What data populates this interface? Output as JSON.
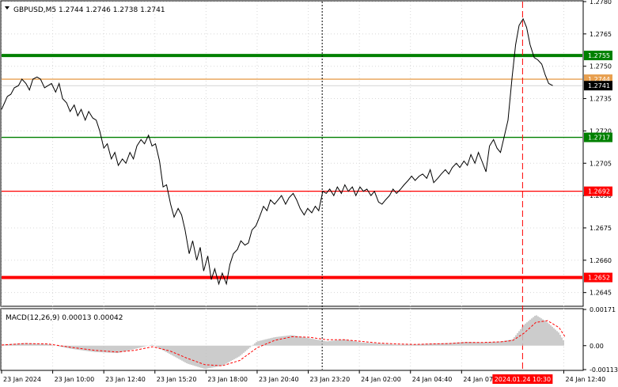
{
  "chart_data": [
    {
      "type": "line",
      "symbol": "GBPUSD,M5",
      "ohlc": [
        "1.2744",
        "1.2746",
        "1.2738",
        "1.2741"
      ],
      "title": "GBPUSD,M5  1.2744 1.2746 1.2738 1.2741",
      "ylim": [
        1.2639,
        1.278
      ],
      "yticks": [
        "1.2780",
        "1.2765",
        "1.2750",
        "1.2735",
        "1.2720",
        "1.2705",
        "1.2690",
        "1.2675",
        "1.2660",
        "1.2645"
      ],
      "xlim": [
        0,
        100
      ],
      "xticks": [
        {
          "x": 0,
          "label": "23 Jan 2024"
        },
        {
          "x": 8.8,
          "label": "23 Jan 10:00"
        },
        {
          "x": 17.6,
          "label": "23 Jan 12:40"
        },
        {
          "x": 26.4,
          "label": "23 Jan 15:20"
        },
        {
          "x": 35.2,
          "label": "23 Jan 18:00"
        },
        {
          "x": 44,
          "label": "23 Jan 20:40"
        },
        {
          "x": 52.8,
          "label": "23 Jan 23:20"
        },
        {
          "x": 61.6,
          "label": "24 Jan 02:00"
        },
        {
          "x": 70.4,
          "label": "24 Jan 04:40"
        },
        {
          "x": 79.2,
          "label": "24 Jan 07:20"
        },
        {
          "x": 96.8,
          "label": "24 Jan 12:40"
        }
      ],
      "highlighted_time": {
        "x": 89.7,
        "label": "2024.01.24 10:30"
      },
      "session_line_x": 55.2,
      "levels": [
        {
          "value": 1.2755,
          "label": "1.2755",
          "color": "#008000",
          "thick": true
        },
        {
          "value": 1.2744,
          "label": "1.2744",
          "color": "#e8a050",
          "thick": false
        },
        {
          "value": 1.2741,
          "label": "1.2741",
          "color": "#000000",
          "thick": false
        },
        {
          "value": 1.2717,
          "label": "1.2717",
          "color": "#008000",
          "thick": false
        },
        {
          "value": 1.2692,
          "label": "1.2692",
          "color": "#ff0000",
          "thick": false
        },
        {
          "value": 1.2652,
          "label": "1.2652",
          "color": "#ff0000",
          "thick": true
        }
      ],
      "price_series": [
        [
          0,
          1.273
        ],
        [
          0.5,
          1.2733
        ],
        [
          1,
          1.2736
        ],
        [
          1.6,
          1.2737
        ],
        [
          2.2,
          1.274
        ],
        [
          2.9,
          1.2741
        ],
        [
          3.5,
          1.2744
        ],
        [
          4.2,
          1.2742
        ],
        [
          4.8,
          1.2739
        ],
        [
          5.4,
          1.2744
        ],
        [
          6.1,
          1.2745
        ],
        [
          6.7,
          1.2744
        ],
        [
          7.4,
          1.274
        ],
        [
          8,
          1.2741
        ],
        [
          8.6,
          1.2742
        ],
        [
          9.3,
          1.2738
        ],
        [
          9.9,
          1.2742
        ],
        [
          10.5,
          1.2735
        ],
        [
          11.2,
          1.2733
        ],
        [
          11.8,
          1.2729
        ],
        [
          12.5,
          1.2732
        ],
        [
          13.1,
          1.2727
        ],
        [
          13.7,
          1.273
        ],
        [
          14.4,
          1.2725
        ],
        [
          15,
          1.2729
        ],
        [
          15.7,
          1.2726
        ],
        [
          16.3,
          1.2725
        ],
        [
          16.9,
          1.272
        ],
        [
          17.6,
          1.2712
        ],
        [
          18.2,
          1.2714
        ],
        [
          18.9,
          1.2707
        ],
        [
          19.5,
          1.271
        ],
        [
          20.1,
          1.2704
        ],
        [
          20.8,
          1.2707
        ],
        [
          21.4,
          1.2705
        ],
        [
          22.1,
          1.271
        ],
        [
          22.7,
          1.2707
        ],
        [
          23.3,
          1.2713
        ],
        [
          24,
          1.2716
        ],
        [
          24.6,
          1.2714
        ],
        [
          25.3,
          1.2718
        ],
        [
          25.9,
          1.2713
        ],
        [
          26.5,
          1.2714
        ],
        [
          27.2,
          1.2706
        ],
        [
          27.8,
          1.2694
        ],
        [
          28.4,
          1.2695
        ],
        [
          29.1,
          1.2686
        ],
        [
          29.7,
          1.268
        ],
        [
          30.4,
          1.2684
        ],
        [
          31,
          1.2681
        ],
        [
          31.6,
          1.2674
        ],
        [
          32.3,
          1.2663
        ],
        [
          32.9,
          1.2669
        ],
        [
          33.6,
          1.266
        ],
        [
          34.2,
          1.2666
        ],
        [
          34.8,
          1.2655
        ],
        [
          35.5,
          1.2662
        ],
        [
          36.1,
          1.2651
        ],
        [
          36.7,
          1.2656
        ],
        [
          37.4,
          1.2649
        ],
        [
          38,
          1.2654
        ],
        [
          38.7,
          1.2649
        ],
        [
          39.3,
          1.2658
        ],
        [
          39.9,
          1.2663
        ],
        [
          40.6,
          1.2665
        ],
        [
          41.2,
          1.2669
        ],
        [
          41.9,
          1.2667
        ],
        [
          42.5,
          1.2668
        ],
        [
          43.1,
          1.2674
        ],
        [
          43.8,
          1.2676
        ],
        [
          44.4,
          1.268
        ],
        [
          45.1,
          1.2685
        ],
        [
          45.7,
          1.2683
        ],
        [
          46.3,
          1.2688
        ],
        [
          47,
          1.2686
        ],
        [
          47.6,
          1.2688
        ],
        [
          48.2,
          1.269
        ],
        [
          48.9,
          1.2686
        ],
        [
          49.5,
          1.2689
        ],
        [
          50.2,
          1.2691
        ],
        [
          50.8,
          1.2688
        ],
        [
          51.4,
          1.2684
        ],
        [
          52.1,
          1.2681
        ],
        [
          52.7,
          1.2684
        ],
        [
          53.4,
          1.2682
        ],
        [
          54,
          1.2685
        ],
        [
          54.6,
          1.2683
        ],
        [
          55.3,
          1.2692
        ],
        [
          55.9,
          1.2691
        ],
        [
          56.5,
          1.2693
        ],
        [
          57.2,
          1.269
        ],
        [
          57.8,
          1.2694
        ],
        [
          58.5,
          1.2691
        ],
        [
          59.1,
          1.2695
        ],
        [
          59.7,
          1.2692
        ],
        [
          60.4,
          1.2694
        ],
        [
          61,
          1.269
        ],
        [
          61.7,
          1.2694
        ],
        [
          62.3,
          1.2692
        ],
        [
          62.9,
          1.2693
        ],
        [
          63.6,
          1.269
        ],
        [
          64.2,
          1.2692
        ],
        [
          64.9,
          1.2687
        ],
        [
          65.5,
          1.2686
        ],
        [
          66.1,
          1.2688
        ],
        [
          66.8,
          1.269
        ],
        [
          67.4,
          1.2693
        ],
        [
          68,
          1.2691
        ],
        [
          68.7,
          1.2693
        ],
        [
          69.3,
          1.2695
        ],
        [
          70,
          1.2697
        ],
        [
          70.6,
          1.2699
        ],
        [
          71.2,
          1.2697
        ],
        [
          71.9,
          1.2699
        ],
        [
          72.5,
          1.27
        ],
        [
          73.2,
          1.2698
        ],
        [
          73.8,
          1.2702
        ],
        [
          74.4,
          1.2696
        ],
        [
          75.1,
          1.2698
        ],
        [
          75.7,
          1.27
        ],
        [
          76.4,
          1.2702
        ],
        [
          77,
          1.27
        ],
        [
          77.6,
          1.2703
        ],
        [
          78.3,
          1.2705
        ],
        [
          78.9,
          1.2703
        ],
        [
          79.6,
          1.2706
        ],
        [
          80.2,
          1.2704
        ],
        [
          80.8,
          1.2709
        ],
        [
          81.5,
          1.2705
        ],
        [
          82.1,
          1.271
        ],
        [
          82.7,
          1.2706
        ],
        [
          83.4,
          1.2701
        ],
        [
          84,
          1.2713
        ],
        [
          84.7,
          1.2716
        ],
        [
          85.3,
          1.2712
        ],
        [
          85.9,
          1.271
        ],
        [
          86.6,
          1.2718
        ],
        [
          87.2,
          1.2725
        ],
        [
          87.9,
          1.2745
        ],
        [
          88.5,
          1.276
        ],
        [
          89.1,
          1.2769
        ],
        [
          89.8,
          1.2772
        ],
        [
          90.4,
          1.2768
        ],
        [
          91,
          1.276
        ],
        [
          91.7,
          1.2754
        ],
        [
          92.3,
          1.2753
        ],
        [
          93,
          1.2751
        ],
        [
          93.6,
          1.2746
        ],
        [
          94.2,
          1.2742
        ],
        [
          94.9,
          1.2741
        ]
      ]
    },
    {
      "type": "bar",
      "title": "MACD(12,26,9) 0.00013 0.00042",
      "name": "MACD(12,26,9)",
      "values_text": [
        "0.00013",
        "0.00042"
      ],
      "ylim": [
        -0.00113,
        0.00171
      ],
      "yticks": [
        "0.00171",
        "0.00",
        "-0.00113"
      ],
      "xlim": [
        0,
        100
      ],
      "macd_series": [
        [
          0,
          5e-05
        ],
        [
          4,
          0.00012
        ],
        [
          8,
          7e-05
        ],
        [
          12,
          -0.00015
        ],
        [
          16,
          -0.0003
        ],
        [
          20,
          -0.00035
        ],
        [
          23,
          -0.00015
        ],
        [
          26,
          5e-05
        ],
        [
          29,
          -0.0004
        ],
        [
          32,
          -0.00085
        ],
        [
          35,
          -0.0011
        ],
        [
          38,
          -0.00095
        ],
        [
          41,
          -0.0005
        ],
        [
          44,
          0.0002
        ],
        [
          47,
          0.0004
        ],
        [
          50,
          0.0005
        ],
        [
          53,
          0.00035
        ],
        [
          56,
          0.0002
        ],
        [
          59,
          0.0003
        ],
        [
          62,
          0.00015
        ],
        [
          65,
          0.0001
        ],
        [
          68,
          5e-05
        ],
        [
          71,
          5e-05
        ],
        [
          74,
          0.0001
        ],
        [
          77,
          0.00012
        ],
        [
          80,
          0.00018
        ],
        [
          83,
          0.00015
        ],
        [
          86,
          0.0002
        ],
        [
          88,
          0.0003
        ],
        [
          90,
          0.001
        ],
        [
          92,
          0.00145
        ],
        [
          94,
          0.0011
        ],
        [
          96,
          0.0006
        ],
        [
          97,
          0.00013
        ]
      ],
      "signal_series": [
        [
          0,
          3e-05
        ],
        [
          4,
          0.0001
        ],
        [
          8,
          8e-05
        ],
        [
          12,
          -8e-05
        ],
        [
          16,
          -0.00022
        ],
        [
          20,
          -0.0003
        ],
        [
          23,
          -0.00022
        ],
        [
          26,
          -5e-05
        ],
        [
          29,
          -0.00025
        ],
        [
          32,
          -0.0006
        ],
        [
          35,
          -0.0009
        ],
        [
          38,
          -0.00095
        ],
        [
          41,
          -0.0007
        ],
        [
          44,
          -0.0001
        ],
        [
          47,
          0.00025
        ],
        [
          50,
          0.00042
        ],
        [
          53,
          0.0004
        ],
        [
          56,
          0.00028
        ],
        [
          59,
          0.00028
        ],
        [
          62,
          0.0002
        ],
        [
          65,
          0.00012
        ],
        [
          68,
          8e-05
        ],
        [
          71,
          6e-05
        ],
        [
          74,
          8e-05
        ],
        [
          77,
          0.0001
        ],
        [
          80,
          0.00015
        ],
        [
          83,
          0.00015
        ],
        [
          86,
          0.00018
        ],
        [
          88,
          0.00024
        ],
        [
          90,
          0.0006
        ],
        [
          92,
          0.0011
        ],
        [
          94,
          0.00118
        ],
        [
          96,
          0.00085
        ],
        [
          97,
          0.00042
        ]
      ]
    }
  ],
  "colors": {
    "price_line": "#000000",
    "histogram": "#c0c0c0",
    "signal": "#ff0000",
    "grid": "#d8d8d8",
    "highlight_label_bg": "#ff0000"
  }
}
